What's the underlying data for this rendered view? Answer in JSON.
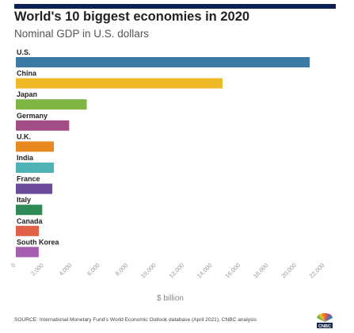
{
  "header": {
    "title": "World's 10 biggest economies in 2020",
    "subtitle": "Nominal GDP in U.S. dollars"
  },
  "footer": {
    "source": "SOURCE: International Monetary Fund's World Economic Outlook database (April 2021), CNBC analysis",
    "logo_text": "CNBC"
  },
  "chart_data": {
    "type": "bar",
    "orientation": "horizontal",
    "title": "World's 10 biggest economies in 2020",
    "subtitle": "Nominal GDP in U.S. dollars",
    "xlabel": "$ billion",
    "ylabel": "",
    "xlim": [
      0,
      22000
    ],
    "ticks": [
      0,
      2000,
      4000,
      6000,
      8000,
      10000,
      12000,
      14000,
      16000,
      18000,
      20000,
      22000
    ],
    "tick_labels": [
      "0",
      "2,000",
      "4,000",
      "6,000",
      "8,000",
      "10,000",
      "12,000",
      "14,000",
      "16,000",
      "18,000",
      "20,000",
      "22,000"
    ],
    "grid": false,
    "legend": "none",
    "categories": [
      "U.S.",
      "China",
      "Japan",
      "Germany",
      "U.K.",
      "India",
      "France",
      "Italy",
      "Canada",
      "South Korea"
    ],
    "values": [
      20930,
      14720,
      5050,
      3800,
      2710,
      2710,
      2600,
      1880,
      1640,
      1630
    ],
    "colors": [
      "#3a7aa3",
      "#f0b928",
      "#7fb542",
      "#a24d83",
      "#e8891f",
      "#4fb3b5",
      "#6b4c9b",
      "#2f8a57",
      "#e06049",
      "#a65fb0"
    ]
  }
}
